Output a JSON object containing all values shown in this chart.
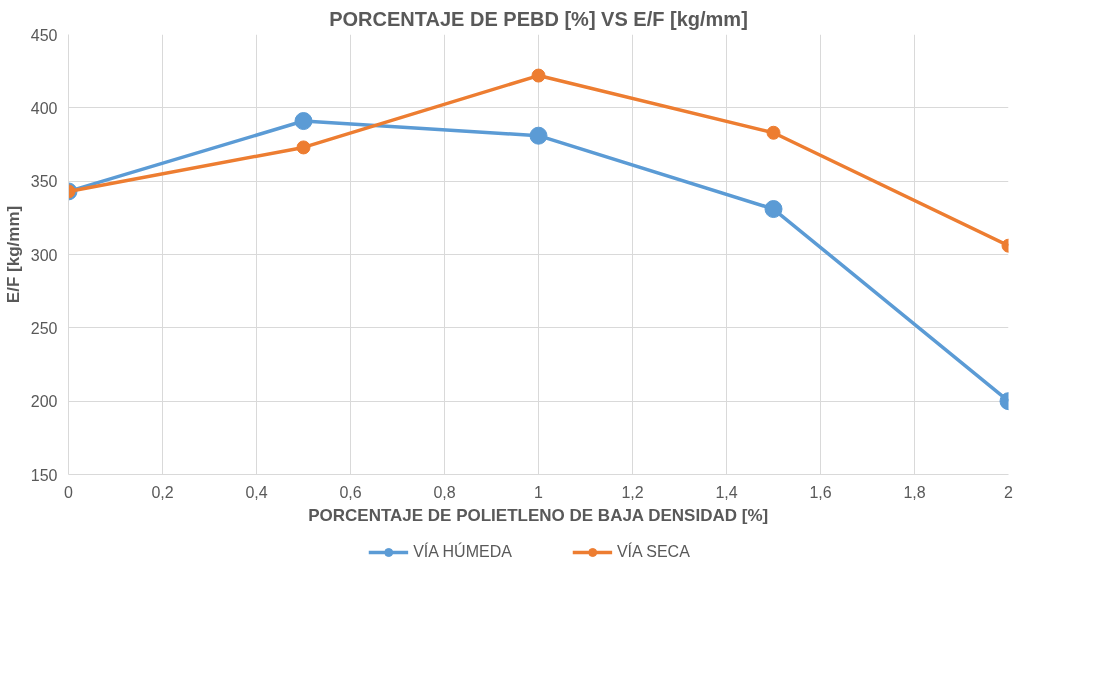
{
  "chart_data": {
    "type": "line",
    "title": "PORCENTAJE DE PEBD [%] VS E/F [kg/mm]",
    "xlabel": "PORCENTAJE DE POLIETLENO DE BAJA DENSIDAD [%]",
    "ylabel": "E/F [kg/mm]",
    "x": [
      0,
      0.5,
      1,
      1.5,
      2
    ],
    "series": [
      {
        "name": "VÍA HÚMEDA",
        "color": "#5b9bd5",
        "values": [
          343,
          391,
          381,
          331,
          200
        ]
      },
      {
        "name": "VÍA SECA",
        "color": "#ed7d31",
        "values": [
          343,
          373,
          422,
          383,
          306
        ]
      }
    ],
    "xlim": [
      0,
      2
    ],
    "xticks": [
      0,
      {
        "value": 0.2,
        "label": "0,2"
      },
      {
        "value": 0.4,
        "label": "0,4"
      },
      {
        "value": 0.6,
        "label": "0,6"
      },
      {
        "value": 0.8,
        "label": "0,8"
      },
      1,
      {
        "value": 1.2,
        "label": "1,2"
      },
      {
        "value": 1.4,
        "label": "1,4"
      },
      {
        "value": 1.6,
        "label": "1,6"
      },
      {
        "value": 1.8,
        "label": "1,8"
      },
      2
    ],
    "ylim": [
      150,
      450
    ],
    "yticks": [
      150,
      200,
      250,
      300,
      350,
      400,
      450
    ],
    "grid": true,
    "legend": "bottom",
    "marker": "circle",
    "line_style": "solid"
  }
}
